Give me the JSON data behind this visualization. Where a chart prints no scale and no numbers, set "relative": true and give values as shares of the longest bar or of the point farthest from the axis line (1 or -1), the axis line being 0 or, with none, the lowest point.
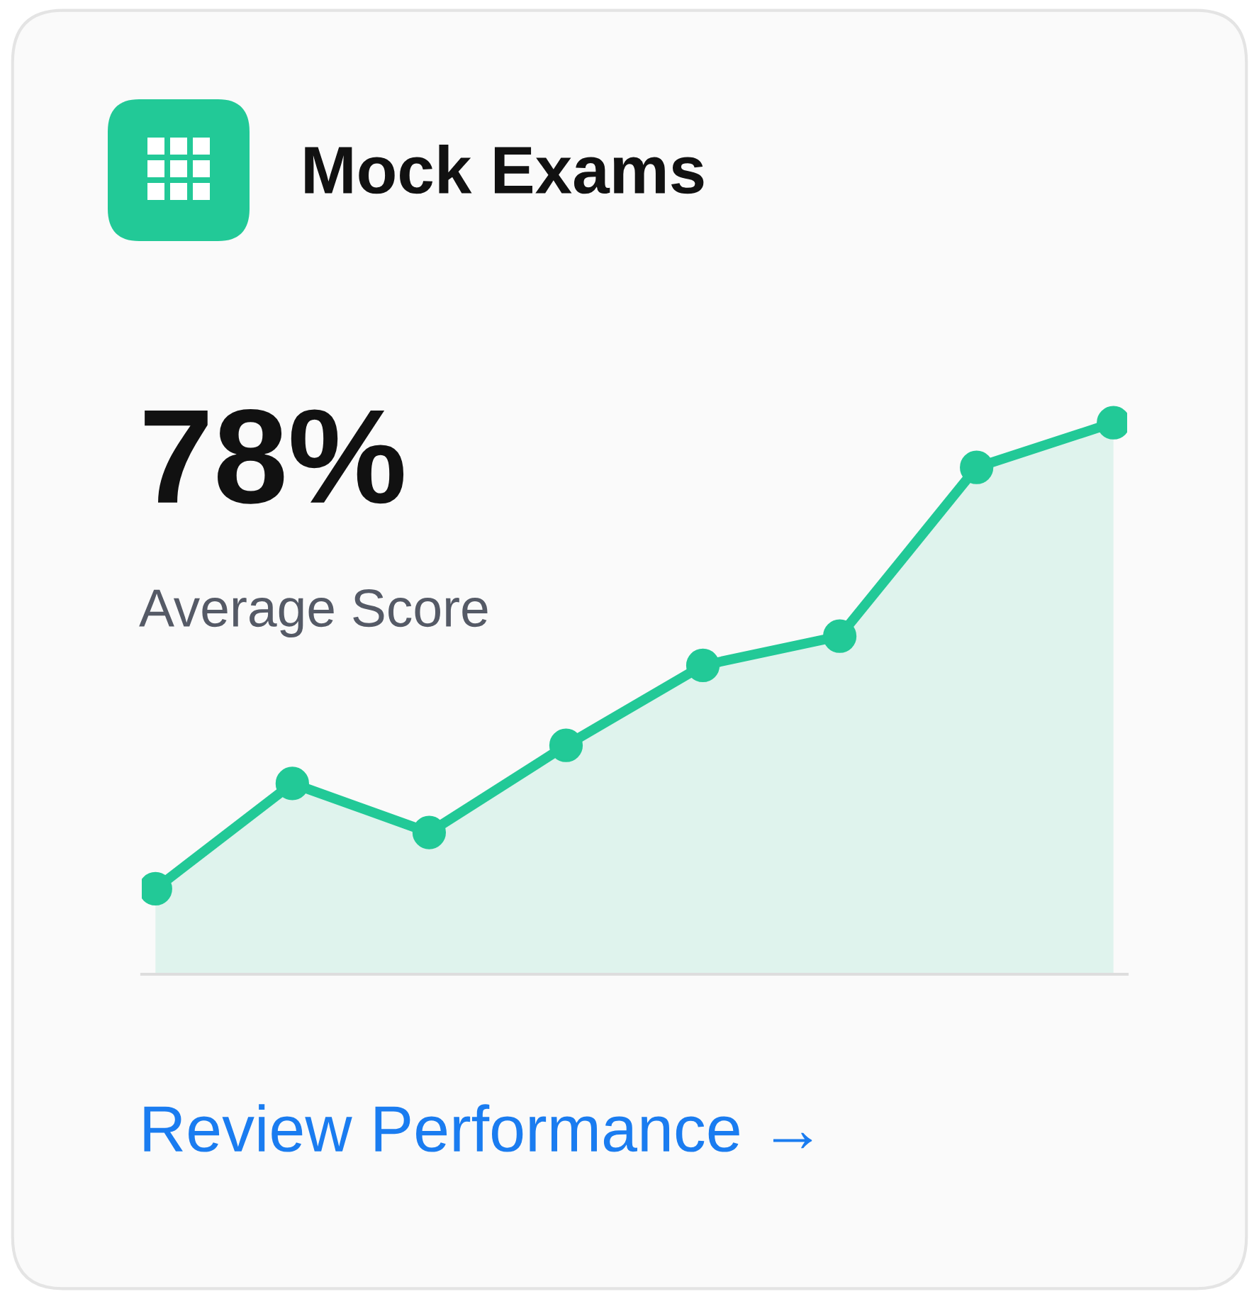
{
  "chart_data": {
    "type": "area",
    "title": "Mock Exams",
    "annotations": [
      "78%",
      "Average Score",
      "Review Performance →"
    ],
    "categories": [
      null,
      null,
      null,
      null,
      null,
      null,
      null,
      null
    ],
    "series": [
      {
        "color": "#22c997",
        "values": [
          0.155,
          0.346,
          0.257,
          0.415,
          0.56,
          0.613,
          0.919,
          1.0
        ]
      }
    ],
    "relative": true,
    "marker": "circle",
    "line_style": "solid",
    "grid": false,
    "legend": false
  }
}
